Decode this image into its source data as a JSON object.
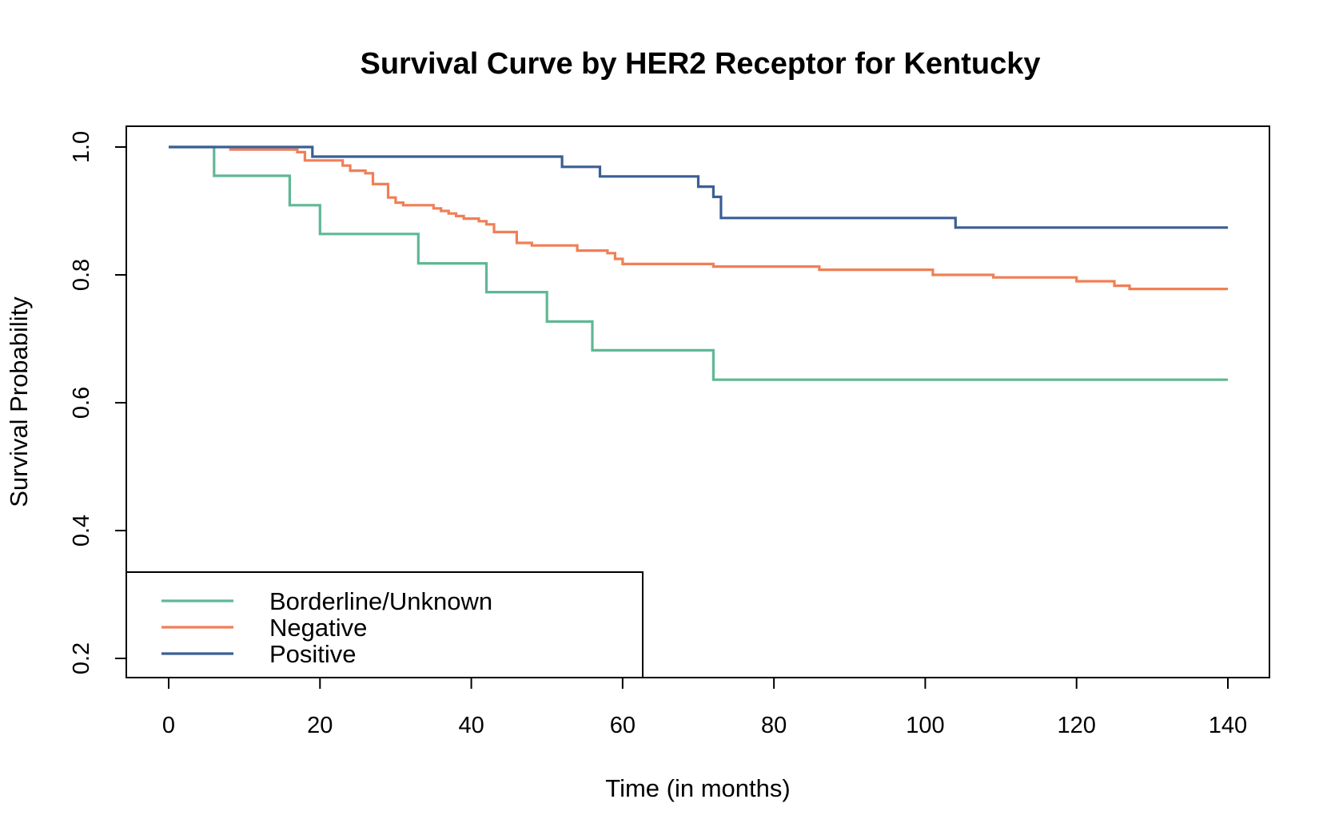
{
  "chart_data": {
    "type": "line",
    "subtype": "step",
    "title": "Survival Curve by HER2 Receptor for Kentucky",
    "xlabel": "Time (in months)",
    "ylabel": "Survival Probability",
    "xlim": [
      0,
      140
    ],
    "ylim": [
      0.2,
      1.0
    ],
    "x_ticks": [
      "0",
      "20",
      "40",
      "60",
      "80",
      "100",
      "120",
      "140"
    ],
    "y_ticks": [
      "0.2",
      "0.4",
      "0.6",
      "0.8",
      "1.0"
    ],
    "grid": false,
    "legend_position": "bottom-left",
    "series": [
      {
        "name": "Borderline/Unknown",
        "color": "#5fb894",
        "x": [
          0,
          6,
          16,
          20,
          33,
          42,
          50,
          56,
          72,
          140
        ],
        "y": [
          1.0,
          0.955,
          0.909,
          0.864,
          0.818,
          0.773,
          0.727,
          0.682,
          0.636,
          0.636
        ]
      },
      {
        "name": "Negative",
        "color": "#f07f56",
        "x": [
          8,
          17,
          18,
          23,
          24,
          26,
          27,
          29,
          30,
          31,
          35,
          36,
          37,
          38,
          39,
          41,
          42,
          43,
          46,
          48,
          54,
          58,
          59,
          60,
          72,
          86,
          101,
          109,
          120,
          125,
          127,
          140
        ],
        "y": [
          0.996,
          0.992,
          0.979,
          0.971,
          0.963,
          0.959,
          0.942,
          0.921,
          0.913,
          0.909,
          0.904,
          0.9,
          0.896,
          0.892,
          0.888,
          0.884,
          0.879,
          0.867,
          0.85,
          0.846,
          0.838,
          0.834,
          0.825,
          0.817,
          0.813,
          0.808,
          0.8,
          0.796,
          0.79,
          0.783,
          0.778,
          0.778
        ]
      },
      {
        "name": "Positive",
        "color": "#3b5f94",
        "x": [
          0,
          19,
          52,
          57,
          70,
          72,
          73,
          104,
          140
        ],
        "y": [
          1.0,
          0.985,
          0.969,
          0.954,
          0.938,
          0.922,
          0.889,
          0.874,
          0.874
        ]
      }
    ]
  }
}
